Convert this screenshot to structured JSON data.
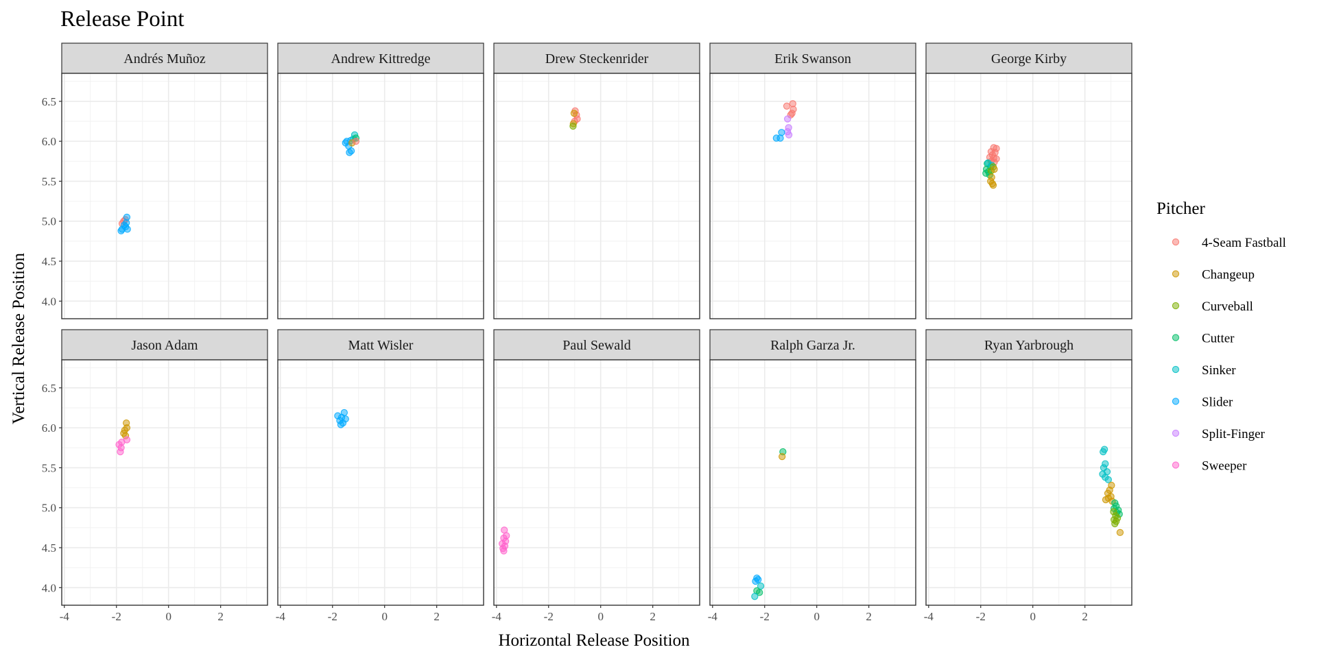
{
  "chart_data": {
    "type": "scatter",
    "title": "Release Point",
    "xlabel": "Horizontal Release Position",
    "ylabel": "Vertical Release Position",
    "xlim": [
      -4.1,
      3.8
    ],
    "ylim": [
      3.78,
      6.85
    ],
    "xticks": [
      -4,
      -2,
      0,
      2
    ],
    "yticks": [
      4.0,
      4.5,
      5.0,
      5.5,
      6.0,
      6.5
    ],
    "ytick_labels": [
      "4.0",
      "4.5",
      "5.0",
      "5.5",
      "6.0",
      "6.5"
    ],
    "grid": true,
    "legend": {
      "title": "Pitcher",
      "position": "right",
      "entries": [
        {
          "name": "4-Seam Fastball",
          "color": "#F8766D"
        },
        {
          "name": "Changeup",
          "color": "#CD9600"
        },
        {
          "name": "Curveball",
          "color": "#7CAE00"
        },
        {
          "name": "Cutter",
          "color": "#00BE67"
        },
        {
          "name": "Sinker",
          "color": "#00BFC4"
        },
        {
          "name": "Slider",
          "color": "#00A9FF"
        },
        {
          "name": "Split-Finger",
          "color": "#C77CFF"
        },
        {
          "name": "Sweeper",
          "color": "#FF61CC"
        }
      ]
    },
    "facets": [
      {
        "name": "Andrés Muñoz",
        "points": [
          {
            "pitch": "4-Seam Fastball",
            "x": -1.72,
            "y": 5.0
          },
          {
            "pitch": "4-Seam Fastball",
            "x": -1.66,
            "y": 5.02
          },
          {
            "pitch": "4-Seam Fastball",
            "x": -1.78,
            "y": 4.97
          },
          {
            "pitch": "Slider",
            "x": -1.6,
            "y": 5.05
          },
          {
            "pitch": "Slider",
            "x": -1.65,
            "y": 4.93
          },
          {
            "pitch": "Slider",
            "x": -1.78,
            "y": 4.9
          },
          {
            "pitch": "Slider",
            "x": -1.82,
            "y": 4.88
          },
          {
            "pitch": "Slider",
            "x": -1.58,
            "y": 4.9
          },
          {
            "pitch": "Slider",
            "x": -1.7,
            "y": 4.95
          },
          {
            "pitch": "Slider",
            "x": -1.62,
            "y": 4.98
          }
        ]
      },
      {
        "name": "Andrew Kittredge",
        "points": [
          {
            "pitch": "Slider",
            "x": -1.45,
            "y": 6.0
          },
          {
            "pitch": "Slider",
            "x": -1.5,
            "y": 5.98
          },
          {
            "pitch": "Slider",
            "x": -1.38,
            "y": 5.94
          },
          {
            "pitch": "Slider",
            "x": -1.35,
            "y": 5.86
          },
          {
            "pitch": "Slider",
            "x": -1.28,
            "y": 5.88
          },
          {
            "pitch": "Slider",
            "x": -1.3,
            "y": 6.01
          },
          {
            "pitch": "Sinker",
            "x": -1.15,
            "y": 6.08
          },
          {
            "pitch": "Sinker",
            "x": -1.2,
            "y": 6.03
          },
          {
            "pitch": "Cutter",
            "x": -1.1,
            "y": 6.04
          },
          {
            "pitch": "Changeup",
            "x": -1.25,
            "y": 5.98
          },
          {
            "pitch": "4-Seam Fastball",
            "x": -1.1,
            "y": 6.0
          }
        ]
      },
      {
        "name": "Drew Steckenrider",
        "points": [
          {
            "pitch": "4-Seam Fastball",
            "x": -0.98,
            "y": 6.38
          },
          {
            "pitch": "4-Seam Fastball",
            "x": -0.93,
            "y": 6.33
          },
          {
            "pitch": "4-Seam Fastball",
            "x": -0.9,
            "y": 6.28
          },
          {
            "pitch": "4-Seam Fastball",
            "x": -1.0,
            "y": 6.25
          },
          {
            "pitch": "Changeup",
            "x": -1.02,
            "y": 6.35
          },
          {
            "pitch": "Changeup",
            "x": -1.05,
            "y": 6.22
          },
          {
            "pitch": "Curveball",
            "x": -1.06,
            "y": 6.19
          }
        ]
      },
      {
        "name": "Erik Swanson",
        "points": [
          {
            "pitch": "4-Seam Fastball",
            "x": -1.15,
            "y": 6.44
          },
          {
            "pitch": "4-Seam Fastball",
            "x": -0.92,
            "y": 6.47
          },
          {
            "pitch": "4-Seam Fastball",
            "x": -0.9,
            "y": 6.4
          },
          {
            "pitch": "4-Seam Fastball",
            "x": -0.95,
            "y": 6.35
          },
          {
            "pitch": "4-Seam Fastball",
            "x": -1.0,
            "y": 6.33
          },
          {
            "pitch": "Split-Finger",
            "x": -1.12,
            "y": 6.28
          },
          {
            "pitch": "Split-Finger",
            "x": -1.08,
            "y": 6.17
          },
          {
            "pitch": "Split-Finger",
            "x": -1.12,
            "y": 6.12
          },
          {
            "pitch": "Split-Finger",
            "x": -1.07,
            "y": 6.08
          },
          {
            "pitch": "Slider",
            "x": -1.55,
            "y": 6.04
          },
          {
            "pitch": "Slider",
            "x": -1.4,
            "y": 6.04
          },
          {
            "pitch": "Slider",
            "x": -1.35,
            "y": 6.11
          }
        ]
      },
      {
        "name": "George Kirby",
        "points": [
          {
            "pitch": "4-Seam Fastball",
            "x": -1.5,
            "y": 5.92
          },
          {
            "pitch": "4-Seam Fastball",
            "x": -1.4,
            "y": 5.91
          },
          {
            "pitch": "4-Seam Fastball",
            "x": -1.6,
            "y": 5.87
          },
          {
            "pitch": "4-Seam Fastball",
            "x": -1.45,
            "y": 5.86
          },
          {
            "pitch": "4-Seam Fastball",
            "x": -1.55,
            "y": 5.83
          },
          {
            "pitch": "4-Seam Fastball",
            "x": -1.65,
            "y": 5.8
          },
          {
            "pitch": "4-Seam Fastball",
            "x": -1.5,
            "y": 5.79
          },
          {
            "pitch": "4-Seam Fastball",
            "x": -1.4,
            "y": 5.78
          },
          {
            "pitch": "4-Seam Fastball",
            "x": -1.6,
            "y": 5.75
          },
          {
            "pitch": "4-Seam Fastball",
            "x": -1.48,
            "y": 5.74
          },
          {
            "pitch": "Cutter",
            "x": -1.75,
            "y": 5.72
          },
          {
            "pitch": "Cutter",
            "x": -1.62,
            "y": 5.68
          },
          {
            "pitch": "Cutter",
            "x": -1.78,
            "y": 5.65
          },
          {
            "pitch": "Cutter",
            "x": -1.7,
            "y": 5.62
          },
          {
            "pitch": "Cutter",
            "x": -1.8,
            "y": 5.6
          },
          {
            "pitch": "Cutter",
            "x": -1.66,
            "y": 5.58
          },
          {
            "pitch": "Sinker",
            "x": -1.72,
            "y": 5.73
          },
          {
            "pitch": "Sinker",
            "x": -1.58,
            "y": 5.7
          },
          {
            "pitch": "Curveball",
            "x": -1.52,
            "y": 5.68
          },
          {
            "pitch": "Curveball",
            "x": -1.6,
            "y": 5.63
          },
          {
            "pitch": "Changeup",
            "x": -1.48,
            "y": 5.65
          },
          {
            "pitch": "Changeup",
            "x": -1.58,
            "y": 5.55
          },
          {
            "pitch": "Changeup",
            "x": -1.62,
            "y": 5.5
          },
          {
            "pitch": "Changeup",
            "x": -1.55,
            "y": 5.47
          },
          {
            "pitch": "Changeup",
            "x": -1.52,
            "y": 5.45
          }
        ]
      },
      {
        "name": "Jason Adam",
        "points": [
          {
            "pitch": "Changeup",
            "x": -1.62,
            "y": 6.06
          },
          {
            "pitch": "Changeup",
            "x": -1.6,
            "y": 6.0
          },
          {
            "pitch": "Changeup",
            "x": -1.68,
            "y": 5.97
          },
          {
            "pitch": "Changeup",
            "x": -1.72,
            "y": 5.93
          },
          {
            "pitch": "Changeup",
            "x": -1.65,
            "y": 5.9
          },
          {
            "pitch": "Sweeper",
            "x": -1.6,
            "y": 5.85
          },
          {
            "pitch": "Sweeper",
            "x": -1.8,
            "y": 5.82
          },
          {
            "pitch": "Sweeper",
            "x": -1.9,
            "y": 5.79
          },
          {
            "pitch": "Sweeper",
            "x": -1.82,
            "y": 5.75
          },
          {
            "pitch": "Sweeper",
            "x": -1.85,
            "y": 5.7
          }
        ]
      },
      {
        "name": "Matt Wisler",
        "points": [
          {
            "pitch": "Slider",
            "x": -1.55,
            "y": 6.19
          },
          {
            "pitch": "Slider",
            "x": -1.8,
            "y": 6.15
          },
          {
            "pitch": "Slider",
            "x": -1.65,
            "y": 6.13
          },
          {
            "pitch": "Slider",
            "x": -1.5,
            "y": 6.11
          },
          {
            "pitch": "Slider",
            "x": -1.72,
            "y": 6.09
          },
          {
            "pitch": "Slider",
            "x": -1.6,
            "y": 6.06
          },
          {
            "pitch": "Slider",
            "x": -1.68,
            "y": 6.04
          }
        ]
      },
      {
        "name": "Paul Sewald",
        "points": [
          {
            "pitch": "Sweeper",
            "x": -3.7,
            "y": 4.72
          },
          {
            "pitch": "Sweeper",
            "x": -3.62,
            "y": 4.65
          },
          {
            "pitch": "Sweeper",
            "x": -3.72,
            "y": 4.62
          },
          {
            "pitch": "Sweeper",
            "x": -3.65,
            "y": 4.58
          },
          {
            "pitch": "Sweeper",
            "x": -3.78,
            "y": 4.55
          },
          {
            "pitch": "Sweeper",
            "x": -3.68,
            "y": 4.52
          },
          {
            "pitch": "Sweeper",
            "x": -3.75,
            "y": 4.49
          },
          {
            "pitch": "Sweeper",
            "x": -3.72,
            "y": 4.46
          }
        ]
      },
      {
        "name": "Ralph Garza Jr.",
        "points": [
          {
            "pitch": "Cutter",
            "x": -1.3,
            "y": 5.7
          },
          {
            "pitch": "Changeup",
            "x": -1.33,
            "y": 5.64
          },
          {
            "pitch": "Slider",
            "x": -2.3,
            "y": 4.12
          },
          {
            "pitch": "Slider",
            "x": -2.25,
            "y": 4.1
          },
          {
            "pitch": "Slider",
            "x": -2.35,
            "y": 4.08
          },
          {
            "pitch": "Sinker",
            "x": -2.15,
            "y": 4.02
          },
          {
            "pitch": "Cutter",
            "x": -2.3,
            "y": 3.96
          },
          {
            "pitch": "Cutter",
            "x": -2.2,
            "y": 3.94
          },
          {
            "pitch": "Sinker",
            "x": -2.38,
            "y": 3.89
          }
        ]
      },
      {
        "name": "Ryan Yarbrough",
        "points": [
          {
            "pitch": "Sinker",
            "x": 2.75,
            "y": 5.73
          },
          {
            "pitch": "Sinker",
            "x": 2.7,
            "y": 5.7
          },
          {
            "pitch": "Sinker",
            "x": 2.78,
            "y": 5.55
          },
          {
            "pitch": "Sinker",
            "x": 2.72,
            "y": 5.5
          },
          {
            "pitch": "Sinker",
            "x": 2.85,
            "y": 5.45
          },
          {
            "pitch": "Sinker",
            "x": 2.68,
            "y": 5.42
          },
          {
            "pitch": "Sinker",
            "x": 2.78,
            "y": 5.38
          },
          {
            "pitch": "Sinker",
            "x": 2.9,
            "y": 5.35
          },
          {
            "pitch": "Changeup",
            "x": 3.02,
            "y": 5.28
          },
          {
            "pitch": "Changeup",
            "x": 2.95,
            "y": 5.22
          },
          {
            "pitch": "Changeup",
            "x": 2.88,
            "y": 5.18
          },
          {
            "pitch": "Changeup",
            "x": 3.0,
            "y": 5.14
          },
          {
            "pitch": "Changeup",
            "x": 2.9,
            "y": 5.12
          },
          {
            "pitch": "Changeup",
            "x": 2.8,
            "y": 5.1
          },
          {
            "pitch": "Changeup",
            "x": 3.05,
            "y": 5.08
          },
          {
            "pitch": "Cutter",
            "x": 3.15,
            "y": 5.06
          },
          {
            "pitch": "Cutter",
            "x": 3.2,
            "y": 5.02
          },
          {
            "pitch": "Cutter",
            "x": 3.12,
            "y": 4.99
          },
          {
            "pitch": "Cutter",
            "x": 3.28,
            "y": 4.97
          },
          {
            "pitch": "Cutter",
            "x": 3.22,
            "y": 4.94
          },
          {
            "pitch": "Cutter",
            "x": 3.32,
            "y": 4.92
          },
          {
            "pitch": "Curveball",
            "x": 3.1,
            "y": 4.95
          },
          {
            "pitch": "Curveball",
            "x": 3.18,
            "y": 4.9
          },
          {
            "pitch": "Curveball",
            "x": 3.25,
            "y": 4.87
          },
          {
            "pitch": "Curveball",
            "x": 3.12,
            "y": 4.85
          },
          {
            "pitch": "Curveball",
            "x": 3.2,
            "y": 4.83
          },
          {
            "pitch": "Curveball",
            "x": 3.15,
            "y": 4.8
          },
          {
            "pitch": "Changeup",
            "x": 3.35,
            "y": 4.69
          }
        ]
      }
    ]
  }
}
